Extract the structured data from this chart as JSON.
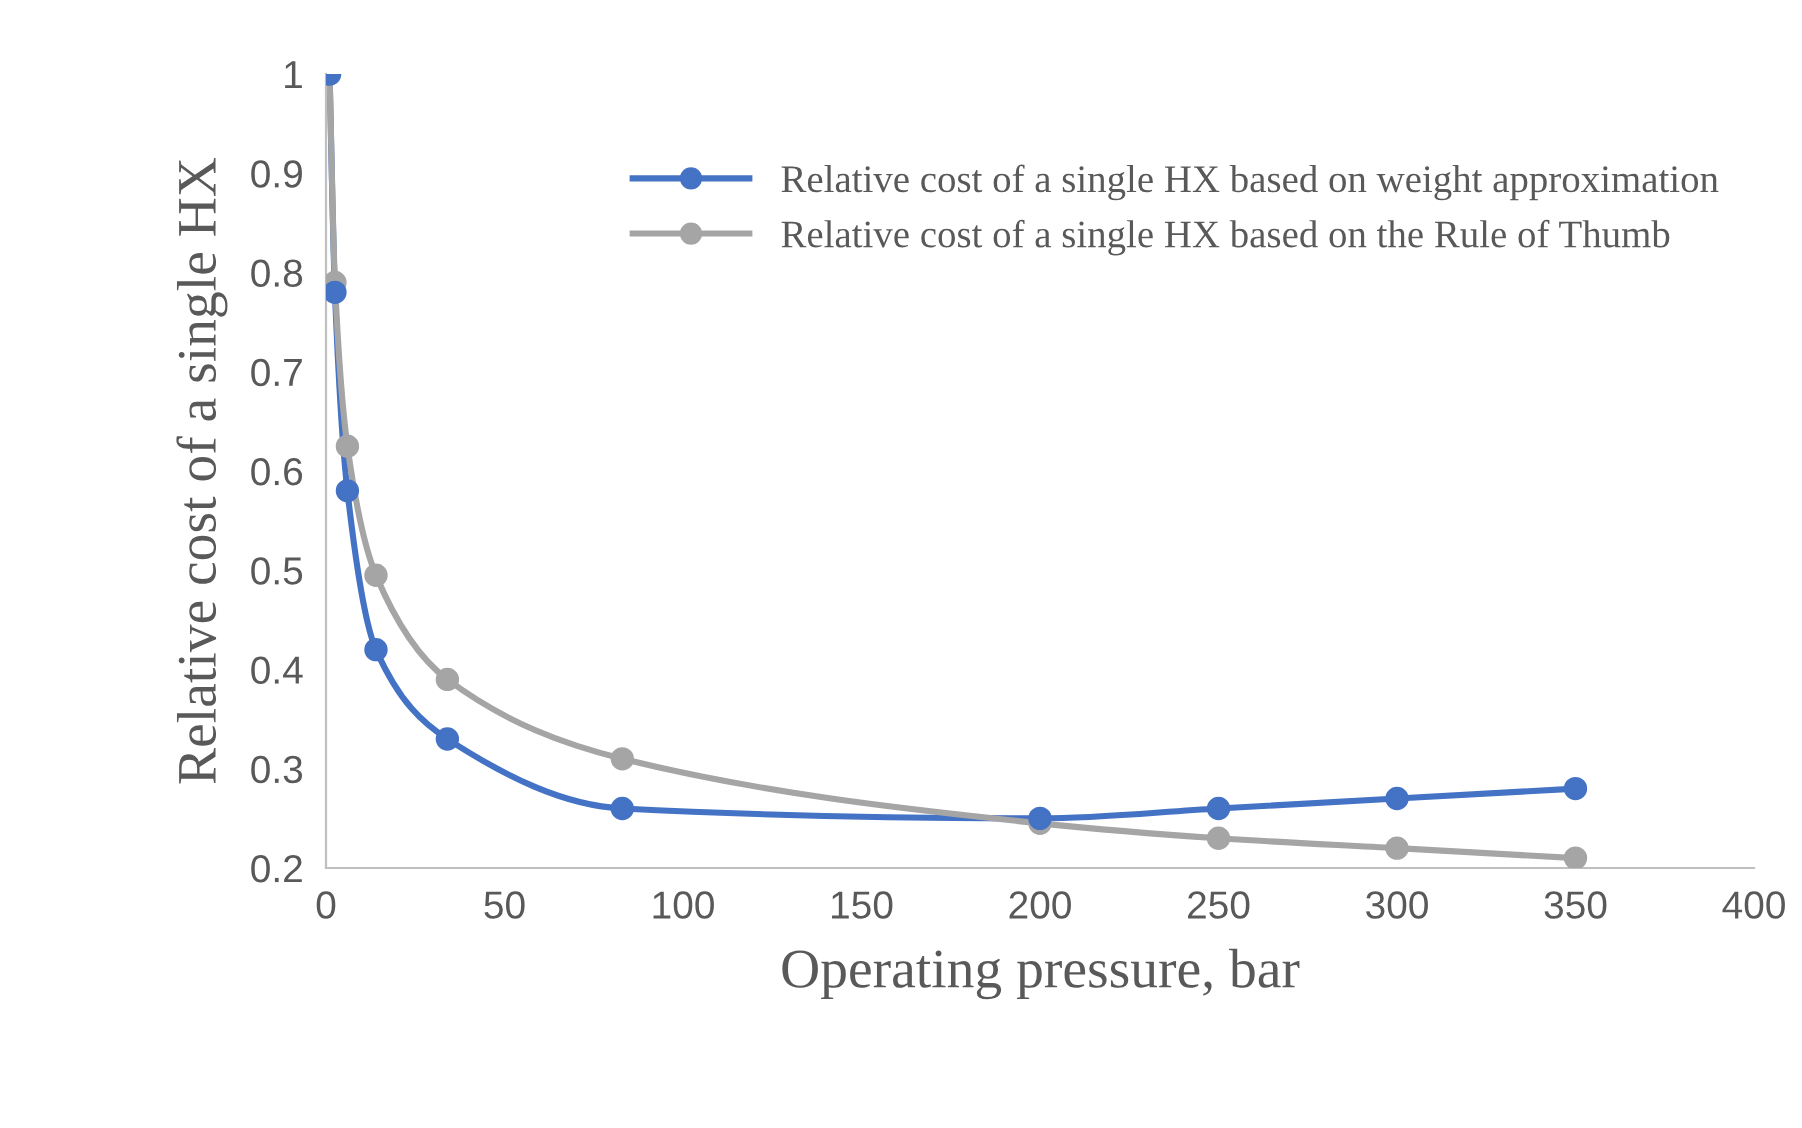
{
  "chart_data": {
    "type": "line",
    "xlabel": "Operating pressure, bar",
    "ylabel": "Relative cost of a single HX",
    "x": [
      1,
      2.5,
      6,
      14,
      34,
      83,
      200,
      250,
      300,
      350
    ],
    "series": [
      {
        "name": "Relative cost of a single HX based on weight approximation",
        "color": "#4472c4",
        "values": [
          1,
          0.78,
          0.58,
          0.42,
          0.33,
          0.26,
          0.25,
          0.26,
          0.27,
          0.28
        ]
      },
      {
        "name": "Relative cost of a single HX based on the Rule of Thumb",
        "color": "#a5a5a5",
        "values": [
          1,
          0.79,
          0.625,
          0.495,
          0.39,
          0.31,
          0.245,
          0.23,
          0.22,
          0.21
        ]
      }
    ],
    "xlim": [
      0,
      400
    ],
    "xticks": [
      0,
      50,
      100,
      150,
      200,
      250,
      300,
      350,
      400
    ],
    "ylim": [
      0.2,
      1
    ],
    "yticks": [
      0.2,
      0.3,
      0.4,
      0.5,
      0.6,
      0.7,
      0.8,
      0.9,
      1
    ],
    "grid": false,
    "legend": "top right",
    "marker": "circle",
    "line_style": "solid"
  }
}
